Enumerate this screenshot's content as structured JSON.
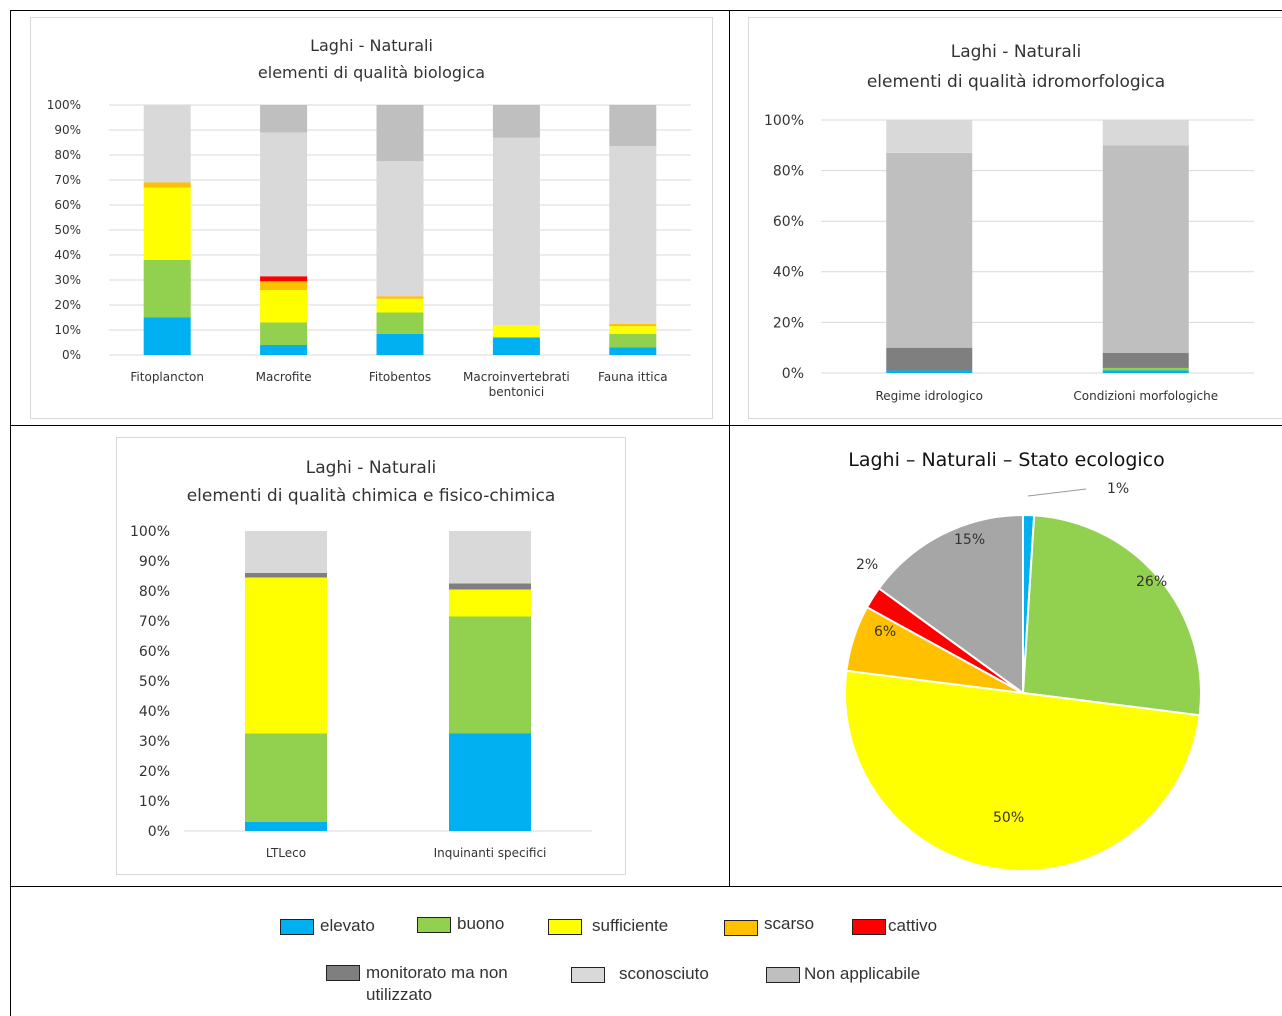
{
  "colors": {
    "elevato": "#00b0f0",
    "buono": "#92d050",
    "sufficiente": "#ffff00",
    "scarso": "#ffc000",
    "cattivo": "#ff0000",
    "monitorato": "#7f7f7f",
    "sconosciuto": "#d9d9d9",
    "non_applicabile": "#bfbfbf",
    "na_pie": "#a6a6a6"
  },
  "legend": {
    "items": [
      {
        "label": "elevato",
        "color": "#00b0f0"
      },
      {
        "label": "buono",
        "color": "#92d050"
      },
      {
        "label": "sufficiente",
        "color": "#ffff00"
      },
      {
        "label": "scarso",
        "color": "#ffc000"
      },
      {
        "label": "cattivo",
        "color": "#ff0000"
      },
      {
        "label": "monitorato ma non utilizzato",
        "color": "#7f7f7f"
      },
      {
        "label": "sconosciuto",
        "color": "#d9d9d9"
      },
      {
        "label": "Non applicabile",
        "color": "#bfbfbf"
      }
    ]
  },
  "chart_data": [
    {
      "id": "bio",
      "type": "bar",
      "stacked": true,
      "title": [
        "Laghi - Naturali",
        "elementi di qualità biologica"
      ],
      "categories": [
        [
          "Fitoplancton"
        ],
        [
          "Macrofite"
        ],
        [
          "Fitobentos"
        ],
        [
          "Macroinvertebrati",
          "bentonici"
        ],
        [
          "Fauna ittica"
        ]
      ],
      "ylim": [
        0,
        100
      ],
      "yticks": [
        "0%",
        "10%",
        "20%",
        "30%",
        "40%",
        "50%",
        "60%",
        "70%",
        "80%",
        "90%",
        "100%"
      ],
      "grid": true,
      "series": [
        {
          "key": "elevato",
          "values": [
            15,
            4,
            8.5,
            7,
            3
          ]
        },
        {
          "key": "buono",
          "values": [
            23,
            9,
            8.5,
            0,
            5.5
          ]
        },
        {
          "key": "sufficiente",
          "values": [
            29,
            13,
            5.5,
            5,
            3
          ]
        },
        {
          "key": "scarso",
          "values": [
            2,
            3.5,
            1,
            0,
            1
          ]
        },
        {
          "key": "cattivo",
          "values": [
            0,
            2,
            0,
            0,
            0
          ]
        },
        {
          "key": "monitorato",
          "values": [
            0,
            0,
            0,
            0,
            0
          ]
        },
        {
          "key": "sconosciuto",
          "values": [
            31,
            57.5,
            54,
            75,
            71
          ]
        },
        {
          "key": "non_applicabile",
          "values": [
            0,
            11,
            22.5,
            13,
            16.5
          ]
        }
      ]
    },
    {
      "id": "idro",
      "type": "bar",
      "stacked": true,
      "title": [
        "Laghi - Naturali",
        "elementi di qualità idromorfologica"
      ],
      "categories": [
        [
          "Regime idrologico"
        ],
        [
          "Condizioni morfologiche"
        ]
      ],
      "ylim": [
        0,
        100
      ],
      "yticks": [
        "0%",
        "20%",
        "40%",
        "60%",
        "80%",
        "100%"
      ],
      "grid": true,
      "series": [
        {
          "key": "elevato",
          "values": [
            1,
            1
          ]
        },
        {
          "key": "buono",
          "values": [
            0,
            1
          ]
        },
        {
          "key": "monitorato",
          "values": [
            9,
            6
          ]
        },
        {
          "key": "non_applicabile",
          "values": [
            77,
            82
          ]
        },
        {
          "key": "sconosciuto",
          "values": [
            13,
            10
          ]
        }
      ]
    },
    {
      "id": "chim",
      "type": "bar",
      "stacked": true,
      "title": [
        "Laghi - Naturali",
        "elementi di qualità chimica e fisico-chimica"
      ],
      "categories": [
        [
          "LTLeco"
        ],
        [
          "Inquinanti specifici"
        ]
      ],
      "ylim": [
        0,
        100
      ],
      "yticks": [
        "0%",
        "10%",
        "20%",
        "30%",
        "40%",
        "50%",
        "60%",
        "70%",
        "80%",
        "90%",
        "100%"
      ],
      "grid": false,
      "series": [
        {
          "key": "elevato",
          "values": [
            3,
            32.5
          ]
        },
        {
          "key": "buono",
          "values": [
            29.5,
            39
          ]
        },
        {
          "key": "sufficiente",
          "values": [
            52,
            9
          ]
        },
        {
          "key": "monitorato",
          "values": [
            1.5,
            2
          ]
        },
        {
          "key": "sconosciuto",
          "values": [
            14,
            17.5
          ]
        }
      ]
    },
    {
      "id": "pie",
      "type": "pie",
      "title": "Laghi – Naturali – Stato ecologico",
      "slices": [
        {
          "key": "elevato",
          "value": 1,
          "label": "1%"
        },
        {
          "key": "buono",
          "value": 26,
          "label": "26%"
        },
        {
          "key": "sufficiente",
          "value": 50,
          "label": "50%"
        },
        {
          "key": "scarso",
          "value": 6,
          "label": "6%"
        },
        {
          "key": "cattivo",
          "value": 2,
          "label": "2%"
        },
        {
          "key": "na_pie",
          "value": 15,
          "label": "15%"
        }
      ]
    }
  ]
}
